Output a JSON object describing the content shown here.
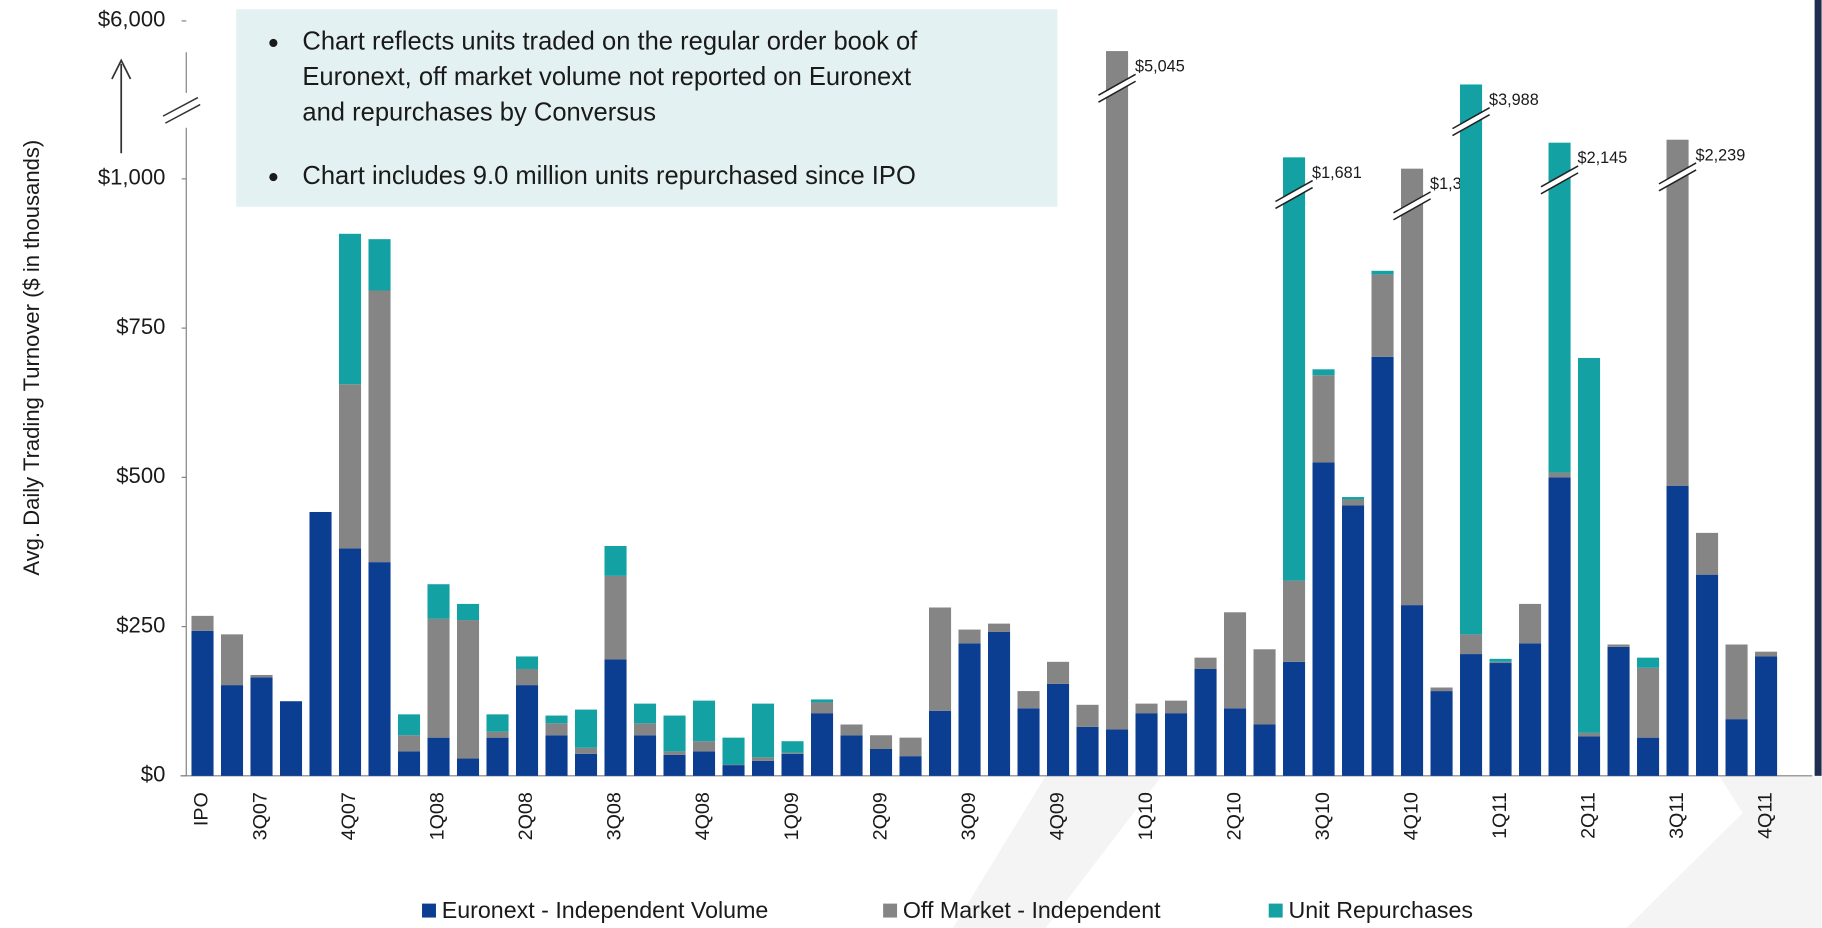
{
  "chart_data": {
    "type": "stacked_bar",
    "ylabel": "Avg. Daily Trading Turnover ($ in thousands)",
    "notes": [
      [
        "Chart reflects units traded on the regular order book of",
        "Euronext, off market volume not reported on Euronext",
        "and repurchases by Conversus"
      ],
      [
        "Chart includes 9.0 million units repurchased since IPO"
      ]
    ],
    "categories": [
      "IPO",
      null,
      "3Q07",
      null,
      null,
      "4Q07",
      null,
      null,
      "1Q08",
      null,
      null,
      "2Q08",
      null,
      null,
      "3Q08",
      null,
      null,
      "4Q08",
      null,
      null,
      "1Q09",
      null,
      null,
      "2Q09",
      null,
      null,
      "3Q09",
      null,
      null,
      "4Q09",
      null,
      null,
      "1Q10",
      null,
      null,
      "2Q10",
      null,
      null,
      "3Q10",
      null,
      null,
      "4Q10",
      null,
      null,
      "1Q11",
      null,
      null,
      "2Q11",
      null,
      null,
      "3Q11",
      null,
      null,
      "4Q11"
    ],
    "series": [
      {
        "name": "Euronext - Independent Volume",
        "color": "#0b3d91",
        "values": [
          243,
          152,
          165,
          125,
          442,
          381,
          358,
          41,
          64,
          29,
          64,
          152,
          68,
          37,
          195,
          68,
          35,
          41,
          18,
          25,
          37,
          105,
          68,
          45,
          33,
          109,
          222,
          241,
          113,
          154,
          82,
          78,
          105,
          105,
          179,
          113,
          86,
          191,
          525,
          453,
          702,
          286,
          142,
          204,
          189,
          222,
          500,
          66,
          216,
          64,
          486,
          337,
          95,
          200
        ]
      },
      {
        "name": "Off Market - Independent",
        "color": "#858585",
        "values": [
          25,
          85,
          4,
          0,
          0,
          275,
          455,
          27,
          199,
          232,
          10,
          27,
          20,
          10,
          140,
          20,
          6,
          17,
          1,
          6,
          2,
          18,
          18,
          23,
          31,
          173,
          23,
          14,
          29,
          37,
          37,
          4967,
          16,
          21,
          19,
          161,
          126,
          136,
          146,
          10,
          138,
          1037,
          6,
          33,
          2,
          66,
          8,
          6,
          4,
          117,
          1753,
          70,
          125,
          8
        ]
      },
      {
        "name": "Unit Repurchases",
        "color": "#13a1a4",
        "values": [
          0,
          0,
          0,
          0,
          0,
          252,
          86,
          35,
          58,
          27,
          29,
          21,
          13,
          64,
          50,
          33,
          60,
          68,
          45,
          90,
          19,
          5,
          0,
          0,
          0,
          0,
          0,
          0,
          0,
          0,
          0,
          0,
          0,
          0,
          0,
          0,
          0,
          1354,
          10,
          4,
          6,
          0,
          0,
          3751,
          5,
          0,
          1637,
          628,
          0,
          17,
          0,
          0,
          0,
          0
        ]
      }
    ],
    "totals": [
      null,
      null,
      null,
      null,
      null,
      null,
      null,
      null,
      null,
      null,
      null,
      null,
      null,
      null,
      null,
      null,
      null,
      null,
      null,
      null,
      null,
      null,
      null,
      null,
      null,
      null,
      null,
      null,
      null,
      null,
      null,
      5045,
      null,
      null,
      null,
      null,
      null,
      1681,
      null,
      null,
      null,
      1323,
      null,
      3988,
      null,
      null,
      2145,
      null,
      null,
      null,
      2239,
      null,
      null,
      null
    ],
    "total_labels": [
      null,
      null,
      null,
      null,
      null,
      null,
      null,
      null,
      null,
      null,
      null,
      null,
      null,
      null,
      null,
      null,
      null,
      null,
      null,
      null,
      null,
      null,
      null,
      null,
      null,
      null,
      null,
      null,
      null,
      null,
      null,
      "$5,045",
      null,
      null,
      null,
      null,
      null,
      "$1,681",
      null,
      null,
      null,
      "$1,323",
      null,
      "$3,988",
      null,
      null,
      "$2,145",
      null,
      null,
      null,
      "$2,239",
      null,
      null,
      null
    ],
    "ylim": [
      0,
      6000
    ],
    "yticks": [
      {
        "value": 0,
        "label": "$0"
      },
      {
        "value": 250,
        "label": "$250"
      },
      {
        "value": 500,
        "label": "$500"
      },
      {
        "value": 750,
        "label": "$750"
      },
      {
        "value": 1000,
        "label": "$1,000"
      },
      {
        "value": 6000,
        "label": "$6,000"
      }
    ],
    "axis_break": true,
    "grid": false,
    "legend": "bottom"
  }
}
